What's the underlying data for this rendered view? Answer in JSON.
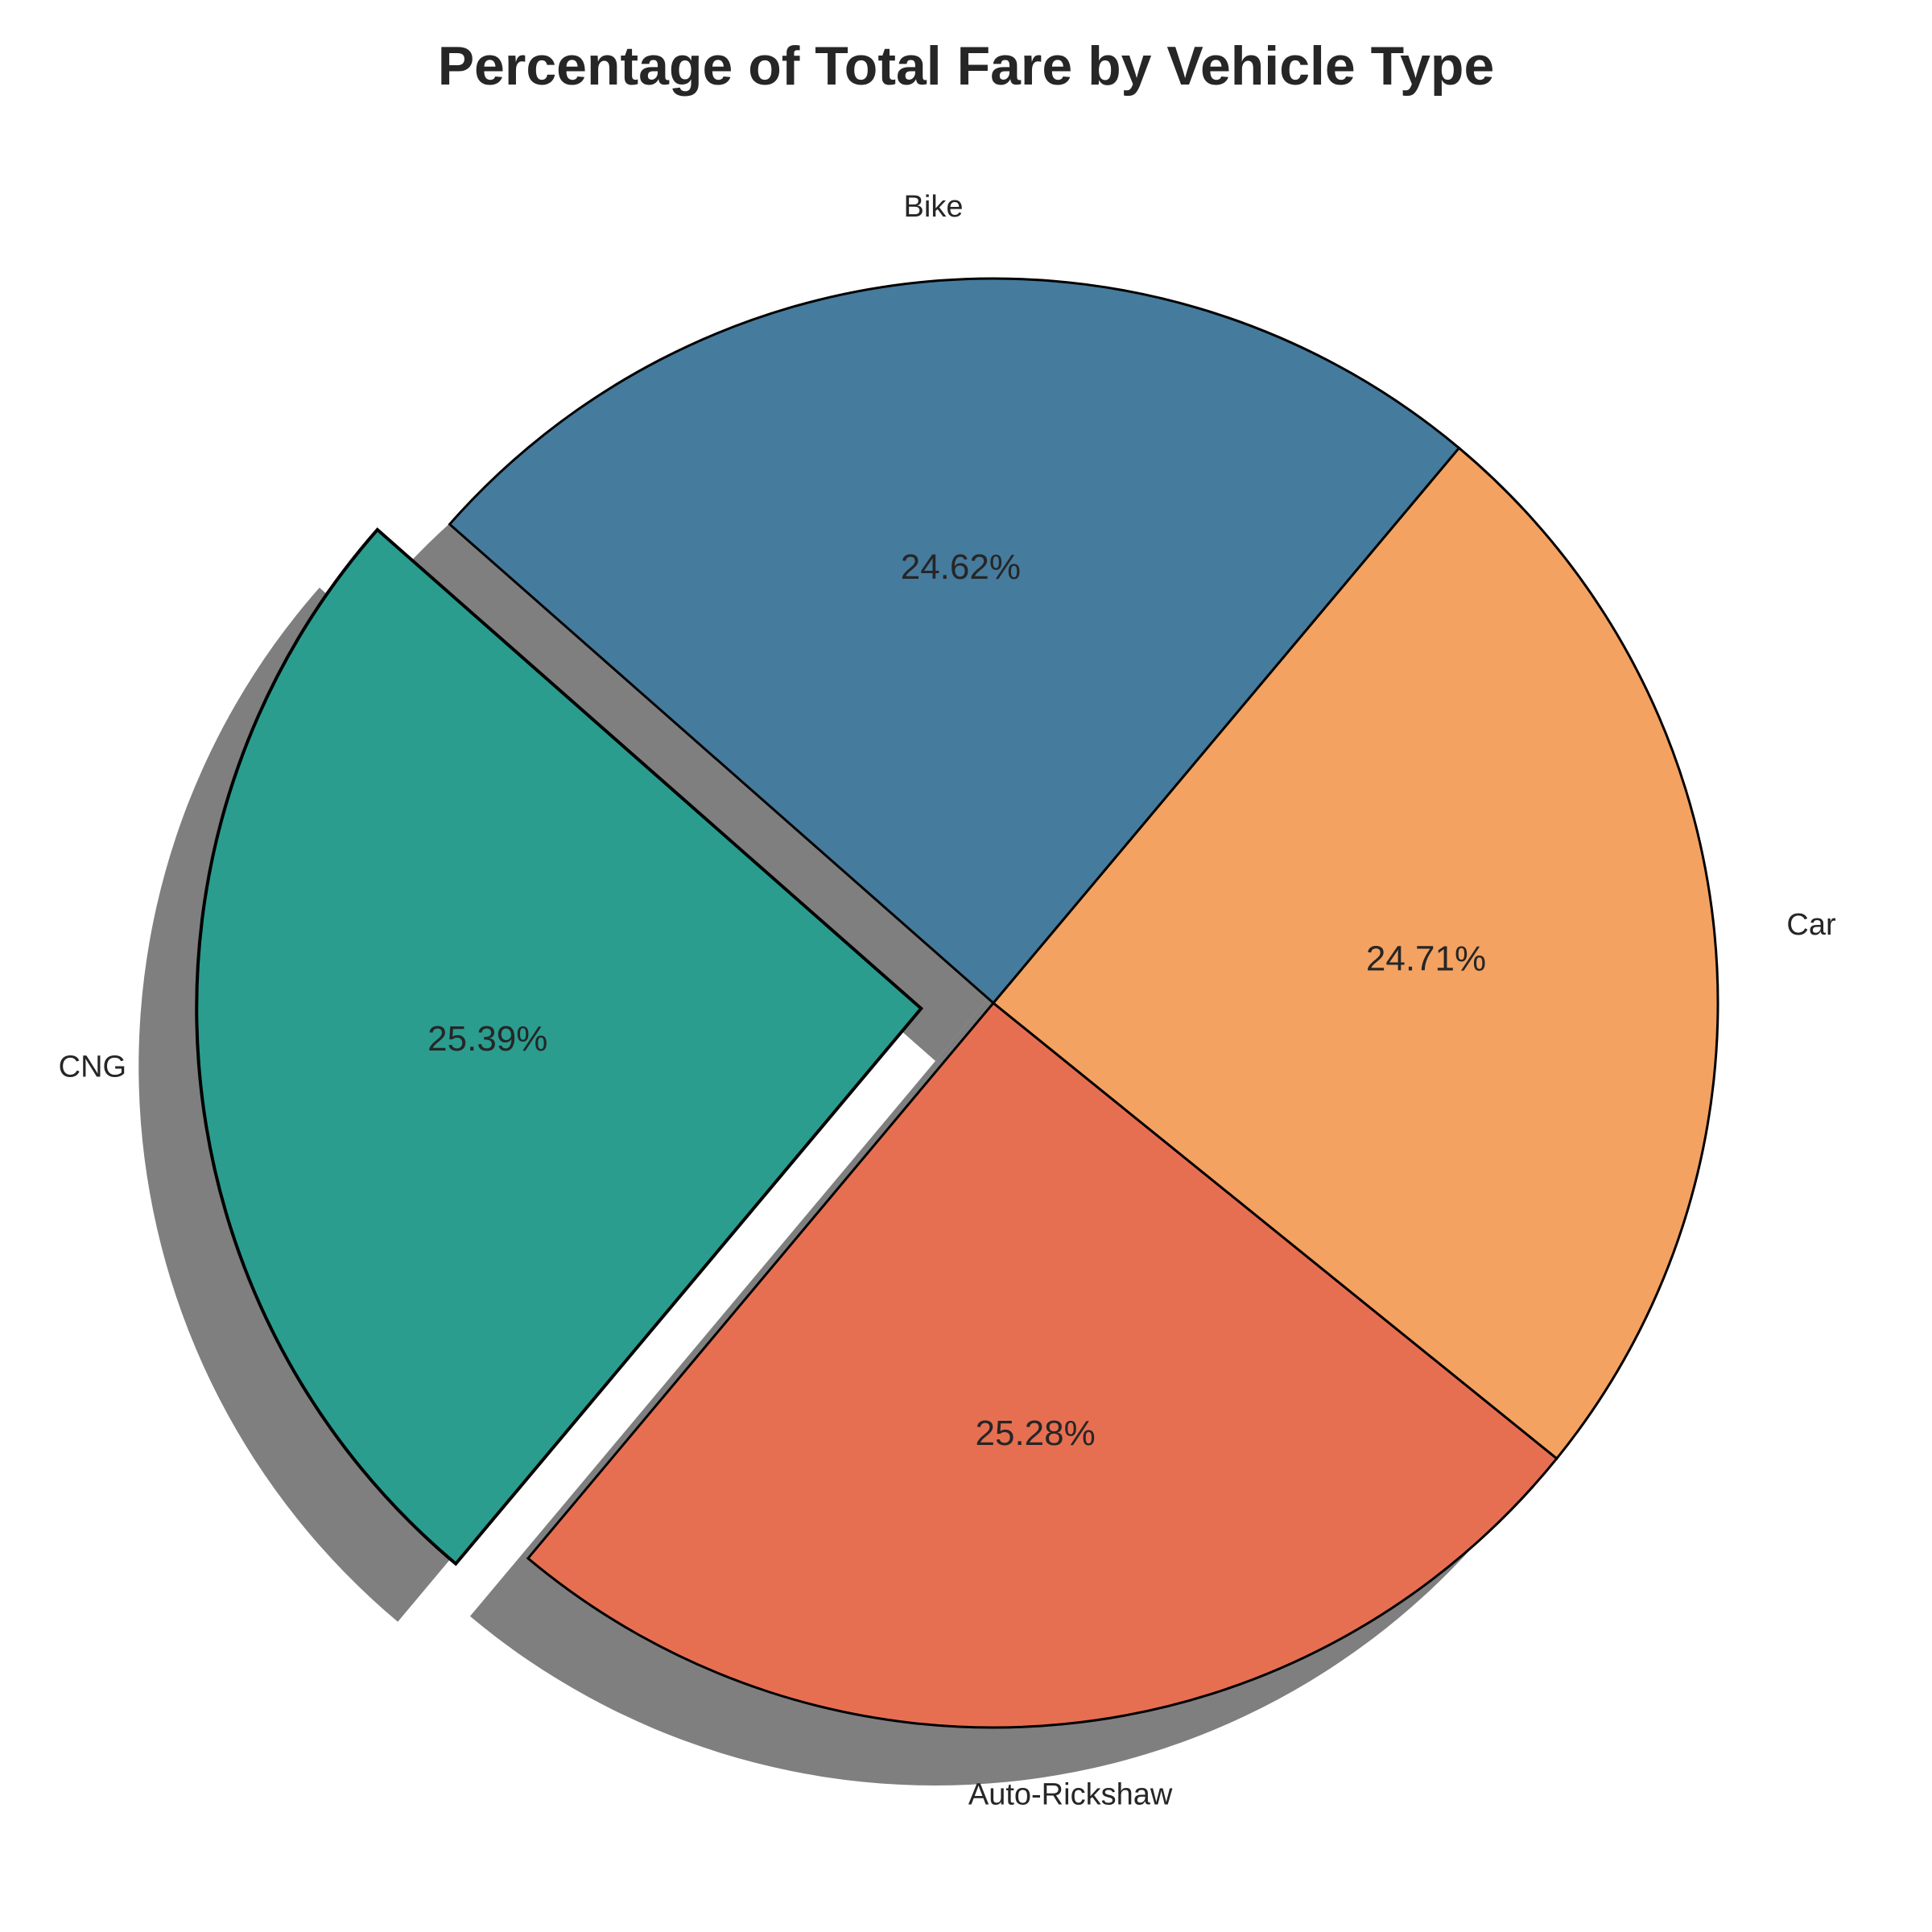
{
  "chart_data": {
    "type": "pie",
    "title": "Percentage of Total Fare by Vehicle Type",
    "slices": [
      {
        "label": "Bike",
        "value": 24.62,
        "pct_label": "24.62%",
        "color": "#457b9d"
      },
      {
        "label": "CNG",
        "value": 25.39,
        "pct_label": "25.39%",
        "color": "#2a9d8f",
        "exploded": true
      },
      {
        "label": "Auto-Rickshaw",
        "value": 25.28,
        "pct_label": "25.28%",
        "color": "#e76f51"
      },
      {
        "label": "Car",
        "value": 24.71,
        "pct_label": "24.71%",
        "color": "#f4a261"
      }
    ],
    "start_angle_deg": 50,
    "direction": "counterclockwise",
    "shadow": true,
    "edge_color": "#000000"
  }
}
